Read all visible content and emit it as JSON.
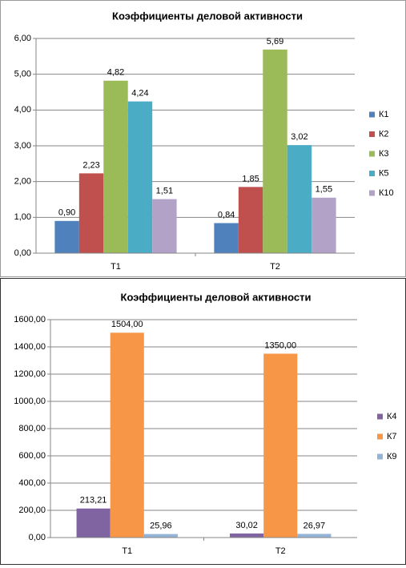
{
  "chart_data": [
    {
      "type": "bar",
      "title": "Коэффициенты деловой активности",
      "categories": [
        "Т1",
        "Т2"
      ],
      "series": [
        {
          "name": "К1",
          "color": "#4f81bd",
          "values": [
            0.9,
            0.84
          ],
          "value_labels": [
            "0,90",
            "0,84"
          ]
        },
        {
          "name": "К2",
          "color": "#c0504d",
          "values": [
            2.23,
            1.85
          ],
          "value_labels": [
            "2,23",
            "1,85"
          ]
        },
        {
          "name": "К3",
          "color": "#9bbb59",
          "values": [
            4.82,
            5.69
          ],
          "value_labels": [
            "4,82",
            "5,69"
          ]
        },
        {
          "name": "К5",
          "color": "#4bacc6",
          "values": [
            4.24,
            3.02
          ],
          "value_labels": [
            "4,24",
            "3,02"
          ]
        },
        {
          "name": "К10",
          "color": "#b3a2c7",
          "values": [
            1.51,
            1.55
          ],
          "value_labels": [
            "1,51",
            "1,55"
          ]
        }
      ],
      "ylim": [
        0,
        6
      ],
      "yticks": [
        {
          "value": 0,
          "label": "0,00"
        },
        {
          "value": 1,
          "label": "1,00"
        },
        {
          "value": 2,
          "label": "2,00"
        },
        {
          "value": 3,
          "label": "3,00"
        },
        {
          "value": 4,
          "label": "4,00"
        },
        {
          "value": 5,
          "label": "5,00"
        },
        {
          "value": 6,
          "label": "6,00"
        }
      ],
      "grid": true,
      "legend": "right"
    },
    {
      "type": "bar",
      "title": "Коэффициенты деловой активности",
      "categories": [
        "Т1",
        "Т2"
      ],
      "series": [
        {
          "name": "К4",
          "color": "#8064a2",
          "values": [
            213.21,
            30.02
          ],
          "value_labels": [
            "213,21",
            "30,02"
          ]
        },
        {
          "name": "К7",
          "color": "#f79646",
          "values": [
            1504,
            1350
          ],
          "value_labels": [
            "1504,00",
            "1350,00"
          ]
        },
        {
          "name": "К9",
          "color": "#93b3d7",
          "values": [
            25.96,
            26.97
          ],
          "value_labels": [
            "25,96",
            "26,97"
          ]
        }
      ],
      "ylim": [
        0,
        1600
      ],
      "yticks": [
        {
          "value": 0,
          "label": "0,00"
        },
        {
          "value": 200,
          "label": "200,00"
        },
        {
          "value": 400,
          "label": "400,00"
        },
        {
          "value": 600,
          "label": "600,00"
        },
        {
          "value": 800,
          "label": "800,00"
        },
        {
          "value": 1000,
          "label": "1000,00"
        },
        {
          "value": 1200,
          "label": "1200,00"
        },
        {
          "value": 1400,
          "label": "1400,00"
        },
        {
          "value": 1600,
          "label": "1600,00"
        }
      ],
      "grid": true,
      "legend": "right"
    }
  ]
}
